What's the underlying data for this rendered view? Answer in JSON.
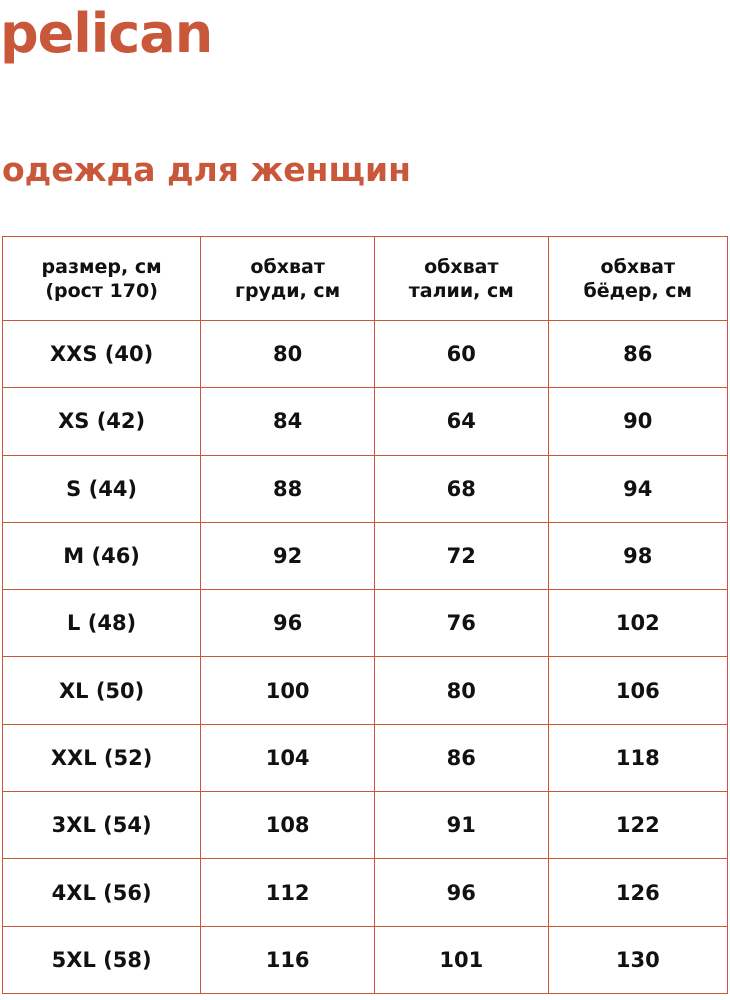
{
  "brand": {
    "logo": "pelican",
    "color": "#c9583a"
  },
  "title": "одежда для женщин",
  "table": {
    "headers": [
      [
        "размер, см",
        "(рост 170)"
      ],
      [
        "обхват",
        "груди, см"
      ],
      [
        "обхват",
        "талии, см"
      ],
      [
        "обхват",
        "бёдер, см"
      ]
    ],
    "rows": [
      [
        "XXS (40)",
        "80",
        "60",
        "86"
      ],
      [
        "XS (42)",
        "84",
        "64",
        "90"
      ],
      [
        "S (44)",
        "88",
        "68",
        "94"
      ],
      [
        "M (46)",
        "92",
        "72",
        "98"
      ],
      [
        "L (48)",
        "96",
        "76",
        "102"
      ],
      [
        "XL (50)",
        "100",
        "80",
        "106"
      ],
      [
        "XXL (52)",
        "104",
        "86",
        "118"
      ],
      [
        "3XL (54)",
        "108",
        "91",
        "122"
      ],
      [
        "4XL (56)",
        "112",
        "96",
        "126"
      ],
      [
        "5XL (58)",
        "116",
        "101",
        "130"
      ]
    ]
  }
}
